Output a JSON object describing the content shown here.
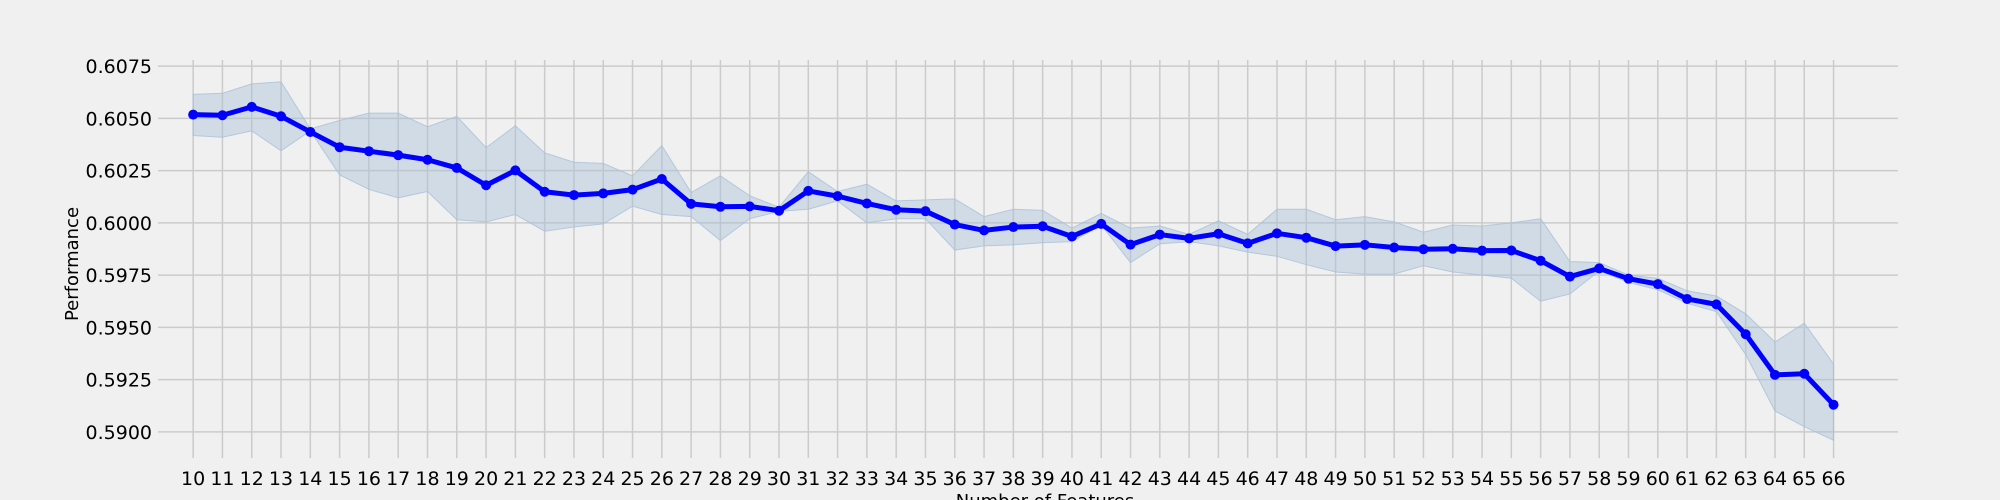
{
  "chart_data": {
    "type": "line",
    "title": "",
    "xlabel": "Number of Features",
    "ylabel": "Performance",
    "x": [
      10,
      11,
      12,
      13,
      14,
      15,
      16,
      17,
      18,
      19,
      20,
      21,
      22,
      23,
      24,
      25,
      26,
      27,
      28,
      29,
      30,
      31,
      32,
      33,
      34,
      35,
      36,
      37,
      38,
      39,
      40,
      41,
      42,
      43,
      44,
      45,
      46,
      47,
      48,
      49,
      50,
      51,
      52,
      53,
      54,
      55,
      56,
      57,
      58,
      59,
      60,
      61,
      62,
      63,
      64,
      65,
      66
    ],
    "series": [
      {
        "color": "#0000ff",
        "band_color": "#a9c0d8",
        "values": [
          0.60518,
          0.60515,
          0.60555,
          0.6051,
          0.60435,
          0.60362,
          0.60343,
          0.60324,
          0.60302,
          0.60263,
          0.6018,
          0.60251,
          0.60149,
          0.60133,
          0.60141,
          0.60159,
          0.6021,
          0.60091,
          0.60077,
          0.60079,
          0.60058,
          0.60153,
          0.60128,
          0.60093,
          0.60063,
          0.60056,
          0.59992,
          0.59964,
          0.5998,
          0.59984,
          0.59935,
          0.59995,
          0.59896,
          0.59944,
          0.59926,
          0.59948,
          0.59902,
          0.5995,
          0.59929,
          0.59889,
          0.59895,
          0.59882,
          0.59874,
          0.59876,
          0.59867,
          0.59868,
          0.59819,
          0.59743,
          0.59782,
          0.59733,
          0.59707,
          0.59636,
          0.5961,
          0.59467,
          0.59273,
          0.59278,
          0.5913
        ],
        "lower": [
          0.60418,
          0.6041,
          0.6044,
          0.60345,
          0.6044,
          0.6023,
          0.6016,
          0.6012,
          0.6015,
          0.60015,
          0.60005,
          0.6004,
          0.5996,
          0.5998,
          0.59995,
          0.6008,
          0.6004,
          0.6003,
          0.59915,
          0.6002,
          0.60055,
          0.60065,
          0.60105,
          0.6,
          0.6002,
          0.6002,
          0.5987,
          0.5989,
          0.59895,
          0.59905,
          0.5991,
          0.5999,
          0.5981,
          0.599,
          0.5991,
          0.5989,
          0.5986,
          0.5984,
          0.598,
          0.59765,
          0.59755,
          0.59755,
          0.59795,
          0.59765,
          0.5975,
          0.59735,
          0.59625,
          0.5966,
          0.5977,
          0.59715,
          0.5968,
          0.59615,
          0.59575,
          0.5937,
          0.591,
          0.59025,
          0.5896
        ],
        "upper": [
          0.60615,
          0.6062,
          0.60665,
          0.60675,
          0.6045,
          0.6049,
          0.60525,
          0.60525,
          0.6046,
          0.6051,
          0.6036,
          0.60465,
          0.60335,
          0.6029,
          0.60285,
          0.60225,
          0.6037,
          0.60145,
          0.60225,
          0.6013,
          0.60075,
          0.60245,
          0.6015,
          0.60185,
          0.60105,
          0.6011,
          0.60115,
          0.6003,
          0.60065,
          0.6006,
          0.59975,
          0.60045,
          0.59975,
          0.59985,
          0.59945,
          0.6001,
          0.59945,
          0.60065,
          0.60065,
          0.60015,
          0.6003,
          0.60005,
          0.59955,
          0.5999,
          0.59985,
          0.6,
          0.6002,
          0.59815,
          0.5981,
          0.5975,
          0.59735,
          0.59675,
          0.5965,
          0.59565,
          0.5943,
          0.5952,
          0.59325
        ]
      }
    ],
    "ylim": [
      0.58875,
      0.60875
    ],
    "xlim": [
      8.8,
      68.2
    ],
    "yticks": [
      "0.5900",
      "0.5925",
      "0.5950",
      "0.5975",
      "0.6000",
      "0.6025",
      "0.6050",
      "0.6075"
    ],
    "ytick_values": [
      0.59,
      0.5925,
      0.595,
      0.5975,
      0.6,
      0.6025,
      0.605,
      0.6075
    ],
    "grid": true,
    "legend": "none"
  }
}
